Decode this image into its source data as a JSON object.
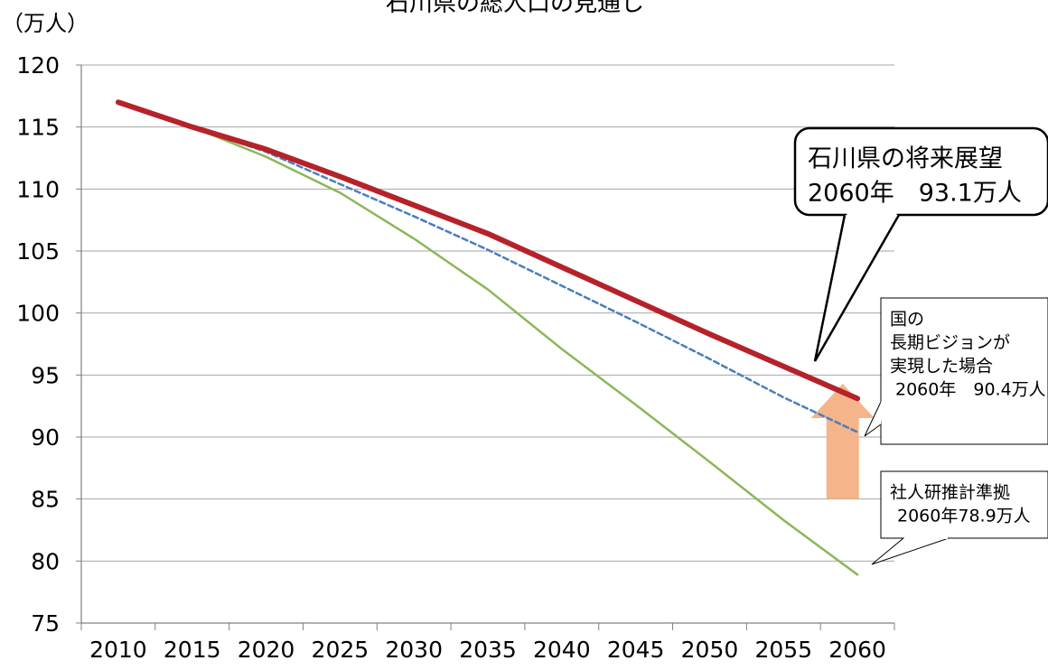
{
  "chart_data": {
    "type": "line",
    "title": "石川県の総人口の見通し",
    "unit_label": "（万人）",
    "x": [
      2010,
      2015,
      2020,
      2025,
      2030,
      2035,
      2040,
      2045,
      2050,
      2055,
      2060
    ],
    "ylim": [
      75,
      120
    ],
    "yticks": [
      75,
      80,
      85,
      90,
      95,
      100,
      105,
      110,
      115,
      120
    ],
    "grid": true,
    "series": [
      {
        "values": [
          117.0,
          115.0,
          113.2,
          111.0,
          108.7,
          106.4,
          103.7,
          101.0,
          98.3,
          95.7,
          93.1
        ],
        "color": "#b5222a",
        "style": "thick-solid"
      },
      {
        "values": [
          117.0,
          115.0,
          113.0,
          110.4,
          107.8,
          105.1,
          102.2,
          99.3,
          96.3,
          93.2,
          90.4
        ],
        "color": "#4a7ebb",
        "style": "dashed"
      },
      {
        "values": [
          117.0,
          115.0,
          112.6,
          109.7,
          106.0,
          101.9,
          97.1,
          92.6,
          88.0,
          83.3,
          78.9
        ],
        "color": "#8db65a",
        "style": "solid"
      }
    ],
    "annotations": [
      {
        "lines": [
          "石川県の将来展望",
          "2060年　93.1万人"
        ],
        "points_to": {
          "x": 2058,
          "y": 95.5
        }
      },
      {
        "lines": [
          "国の",
          "長期ビジョンが",
          "実現した場合",
          "2060年　90.4万人"
        ],
        "points_to": {
          "x": 2060,
          "y": 90.4
        }
      },
      {
        "lines": [
          "社人研推計準拠",
          "2060年78.9万人"
        ],
        "points_to": {
          "x": 2060,
          "y": 78.9
        }
      }
    ],
    "arrow": {
      "from_value": 85.0,
      "to_value": 94.3,
      "at_x": 2059,
      "color": "#f5b48a",
      "direction": "up"
    }
  }
}
